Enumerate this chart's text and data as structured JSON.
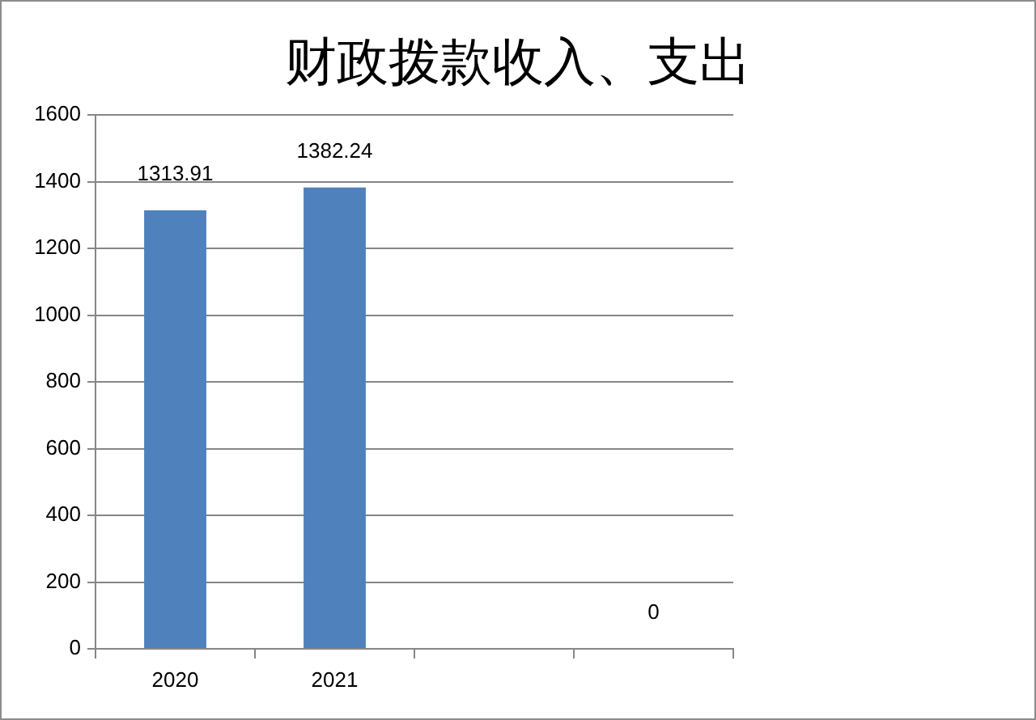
{
  "chart_data": {
    "type": "bar",
    "title": "财政拨款收入、支出",
    "categories": [
      "2020",
      "2021",
      null,
      null
    ],
    "values": [
      1313.91,
      1382.24,
      null,
      0
    ],
    "color": "#4f81bd",
    "ylim": [
      0,
      1600
    ],
    "yticks": [
      0,
      200,
      400,
      600,
      800,
      1000,
      1200,
      1400,
      1600
    ],
    "grid": "y",
    "data_labels": true
  }
}
